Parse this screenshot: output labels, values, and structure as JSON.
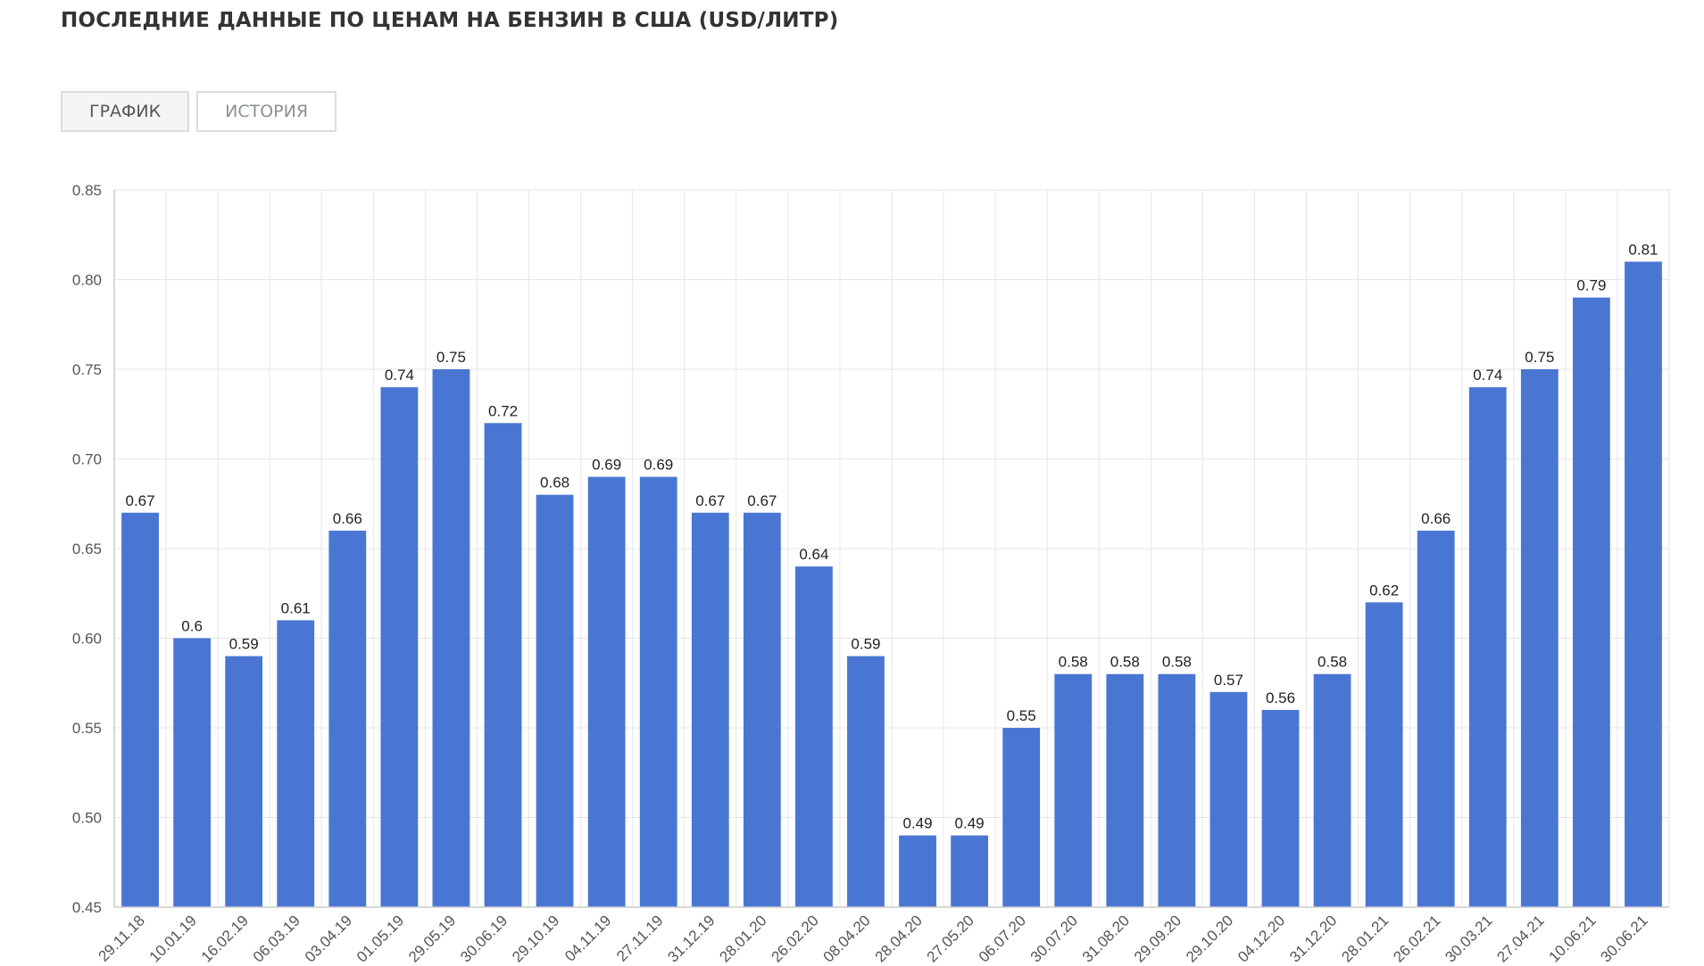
{
  "page": {
    "title": "ПОСЛЕДНИЕ ДАННЫЕ ПО ЦЕНАМ НА БЕНЗИН В США (USD/ЛИТР)"
  },
  "tabs": [
    {
      "label": "ГРАФИК",
      "active": true
    },
    {
      "label": "ИСТОРИЯ",
      "active": false
    }
  ],
  "colors": {
    "bar": "#4a76d3",
    "text": "#333333"
  },
  "chart_data": {
    "type": "bar",
    "title": "",
    "xlabel": "",
    "ylabel": "",
    "ylim": [
      0.45,
      0.85
    ],
    "yticks": [
      "0.45",
      "0.50",
      "0.55",
      "0.60",
      "0.65",
      "0.70",
      "0.75",
      "0.80",
      "0.85"
    ],
    "grid": true,
    "categories": [
      "29.11.18",
      "10.01.19",
      "16.02.19",
      "06.03.19",
      "03.04.19",
      "01.05.19",
      "29.05.19",
      "30.06.19",
      "29.10.19",
      "04.11.19",
      "27.11.19",
      "31.12.19",
      "28.01.20",
      "26.02.20",
      "08.04.20",
      "28.04.20",
      "27.05.20",
      "06.07.20",
      "30.07.20",
      "31.08.20",
      "29.09.20",
      "29.10.20",
      "04.12.20",
      "31.12.20",
      "28.01.21",
      "26.02.21",
      "30.03.21",
      "27.04.21",
      "10.06.21",
      "30.06.21"
    ],
    "values": [
      0.67,
      0.6,
      0.59,
      0.61,
      0.66,
      0.74,
      0.75,
      0.72,
      0.68,
      0.69,
      0.69,
      0.67,
      0.67,
      0.64,
      0.59,
      0.49,
      0.49,
      0.55,
      0.58,
      0.58,
      0.58,
      0.57,
      0.56,
      0.58,
      0.62,
      0.66,
      0.74,
      0.75,
      0.79,
      0.81
    ],
    "value_labels": [
      "0.67",
      "0.6",
      "0.59",
      "0.61",
      "0.66",
      "0.74",
      "0.75",
      "0.72",
      "0.68",
      "0.69",
      "0.69",
      "0.67",
      "0.67",
      "0.64",
      "0.59",
      "0.49",
      "0.49",
      "0.55",
      "0.58",
      "0.58",
      "0.58",
      "0.57",
      "0.56",
      "0.58",
      "0.62",
      "0.66",
      "0.74",
      "0.75",
      "0.79",
      "0.81"
    ]
  }
}
